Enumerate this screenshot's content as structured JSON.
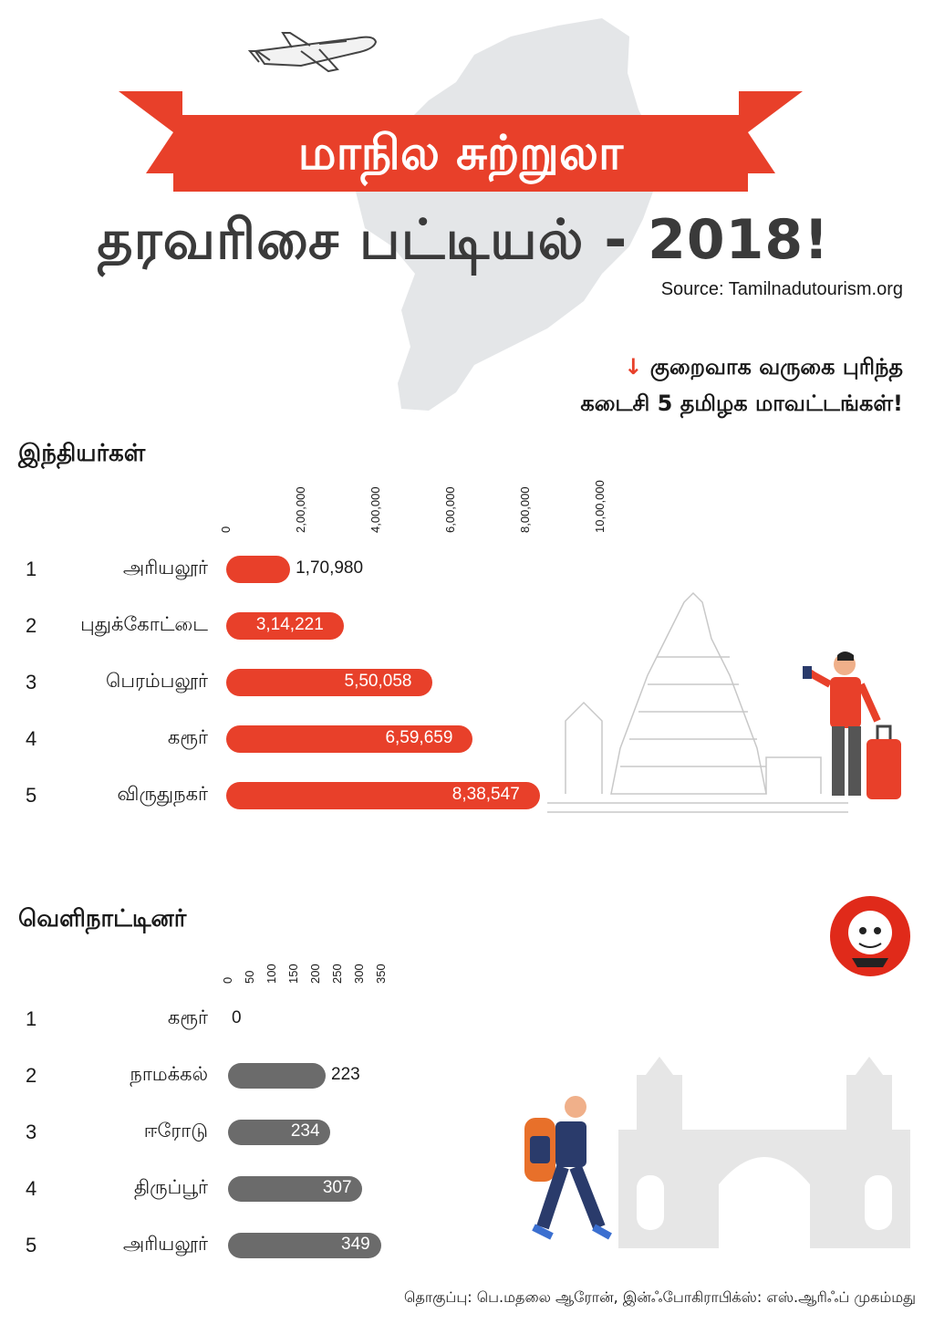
{
  "title": {
    "banner": "மாநில சுற்றுலா",
    "line2": "தரவரிசை பட்டியல் - 2018!",
    "source": "Source:  Tamilnadutourism.org"
  },
  "subtitle": {
    "arrow": "↓",
    "line1": "குறைவாக வருகை புரிந்த",
    "line2": "கடைசி 5 தமிழக மாவட்டங்கள்!"
  },
  "colors": {
    "red": "#e8402a",
    "grey": "#6b6b6b"
  },
  "chart_data": [
    {
      "type": "bar",
      "title": "இந்தியர்கள்",
      "orientation": "horizontal",
      "ranks": [
        "1",
        "2",
        "3",
        "4",
        "5"
      ],
      "categories": [
        "அரியலூர்",
        "புதுக்கோட்டை",
        "பெரம்பலூர்",
        "கரூர்",
        "விருதுநகர்"
      ],
      "values": [
        170980,
        314221,
        550058,
        659659,
        838547
      ],
      "value_labels": [
        "1,70,980",
        "3,14,221",
        "5,50,058",
        "6,59,659",
        "8,38,547"
      ],
      "ticks": [
        0,
        200000,
        400000,
        600000,
        800000,
        1000000
      ],
      "tick_labels": [
        "0",
        "2,00,000",
        "4,00,000",
        "6,00,000",
        "8,00,000",
        "10,00,000"
      ],
      "xlim": [
        0,
        1000000
      ],
      "color": "#e8402a"
    },
    {
      "type": "bar",
      "title": "வெளிநாட்டினர்",
      "orientation": "horizontal",
      "ranks": [
        "1",
        "2",
        "3",
        "4",
        "5"
      ],
      "categories": [
        "கரூர்",
        "நாமக்கல்",
        "ஈரோடு",
        "திருப்பூர்",
        "அரியலூர்"
      ],
      "values": [
        0,
        223,
        234,
        307,
        349
      ],
      "value_labels": [
        "0",
        "223",
        "234",
        "307",
        "349"
      ],
      "ticks": [
        0,
        50,
        100,
        150,
        200,
        250,
        300,
        350
      ],
      "tick_labels": [
        "0",
        "50",
        "100",
        "150",
        "200",
        "250",
        "300",
        "350"
      ],
      "xlim": [
        0,
        350
      ],
      "color": "#6b6b6b"
    }
  ],
  "credit": "தொகுப்பு: பெ.மதலை ஆரோன், இன்ஃபோகிராபிக்ஸ்: எஸ்.ஆரிஃப் முகம்மது",
  "icons": [
    "airplane-icon",
    "temple-icon",
    "traveller-icon",
    "backpacker-icon",
    "gateway-icon",
    "logo-icon"
  ]
}
